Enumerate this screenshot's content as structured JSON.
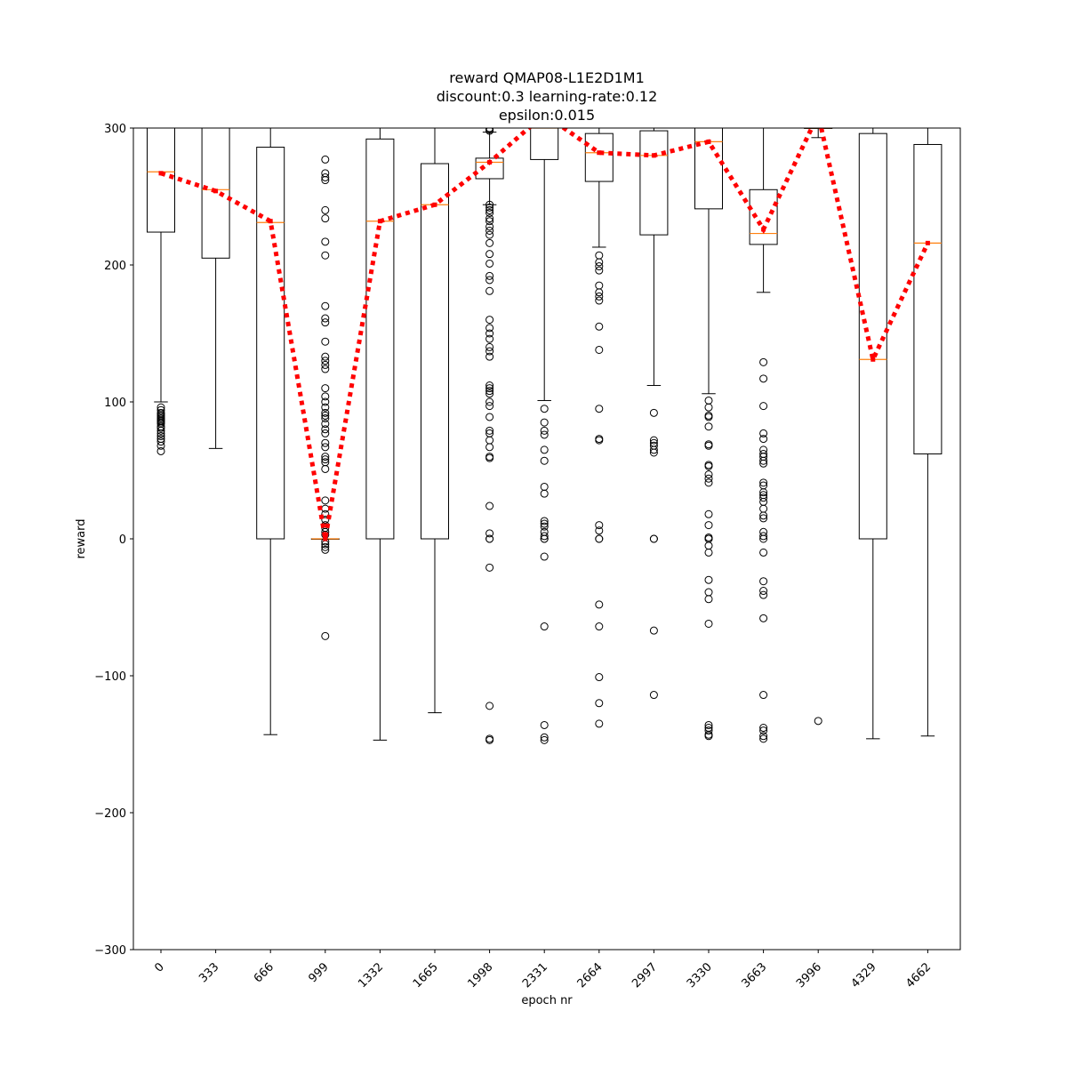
{
  "chart_data": {
    "type": "box",
    "title": [
      "reward QMAP08-L1E2D1M1",
      "discount:0.3 learning-rate:0.12",
      "epsilon:0.015"
    ],
    "xlabel": "epoch nr",
    "ylabel": "reward",
    "ylim": [
      -300,
      300
    ],
    "yticks": [
      -300,
      -200,
      -100,
      0,
      100,
      200,
      300
    ],
    "grid": false,
    "categories": [
      "0",
      "333",
      "666",
      "999",
      "1332",
      "1665",
      "1998",
      "2331",
      "2664",
      "2997",
      "3330",
      "3663",
      "3996",
      "4329",
      "4662"
    ],
    "box_stats": [
      {
        "label": "0",
        "whislo": 100,
        "q1": 224,
        "median": 268,
        "q3": 300,
        "whishi": 300,
        "fliers": [
          64,
          68,
          71,
          73,
          75,
          77,
          79,
          81,
          82,
          84,
          85,
          86,
          87,
          88,
          89,
          90,
          91,
          92,
          94,
          96
        ]
      },
      {
        "label": "333",
        "whislo": 66,
        "q1": 205,
        "median": 255,
        "q3": 300,
        "whishi": 300,
        "fliers": []
      },
      {
        "label": "666",
        "whislo": -143,
        "q1": 0,
        "median": 231,
        "q3": 286,
        "whishi": 300,
        "fliers": []
      },
      {
        "label": "999",
        "whislo": 0,
        "q1": 0,
        "median": 0,
        "q3": 0,
        "whishi": 0,
        "fliers": [
          277,
          267,
          264,
          262,
          240,
          234,
          217,
          207,
          170,
          161,
          158,
          144,
          133,
          130,
          127,
          124,
          110,
          104,
          100,
          96,
          92,
          90,
          88,
          84,
          80,
          77,
          70,
          67,
          60,
          58,
          56,
          51,
          28,
          22,
          18,
          14,
          10,
          8,
          5,
          3,
          -2,
          -4,
          -6,
          -8,
          -71
        ]
      },
      {
        "label": "1332",
        "whislo": -147,
        "q1": 0,
        "median": 232,
        "q3": 292,
        "whishi": 300,
        "fliers": []
      },
      {
        "label": "1665",
        "whislo": -127,
        "q1": 0,
        "median": 244,
        "q3": 274,
        "whishi": 300,
        "fliers": []
      },
      {
        "label": "1998",
        "whislo": 244,
        "q1": 263,
        "median": 275,
        "q3": 278,
        "whishi": 297,
        "fliers": [
          300,
          299,
          298,
          244,
          242,
          240,
          238,
          234,
          232,
          228,
          225,
          222,
          216,
          208,
          201,
          192,
          189,
          181,
          160,
          154,
          150,
          146,
          140,
          137,
          133,
          112,
          110,
          108,
          106,
          100,
          97,
          89,
          79,
          77,
          72,
          67,
          60,
          59,
          24,
          4,
          0,
          0,
          -21,
          -122,
          -146,
          -147
        ]
      },
      {
        "label": "2331",
        "whislo": 101,
        "q1": 277,
        "median": 300,
        "q3": 300,
        "whishi": 300,
        "fliers": [
          95,
          85,
          79,
          76,
          65,
          57,
          38,
          33,
          13,
          11,
          9,
          5,
          2,
          0,
          0,
          -13,
          -64,
          -136,
          -145,
          -147
        ]
      },
      {
        "label": "2664",
        "whislo": 213,
        "q1": 261,
        "median": 282,
        "q3": 296,
        "whishi": 300,
        "fliers": [
          207,
          202,
          199,
          196,
          185,
          180,
          177,
          174,
          155,
          138,
          95,
          73,
          72,
          10,
          6,
          0,
          0,
          -48,
          -64,
          -101,
          -120,
          -135
        ]
      },
      {
        "label": "2997",
        "whislo": 112,
        "q1": 222,
        "median": 280,
        "q3": 298,
        "whishi": 300,
        "fliers": [
          92,
          72,
          70,
          68,
          65,
          63,
          0,
          0,
          -67,
          -114
        ]
      },
      {
        "label": "3330",
        "whislo": 106,
        "q1": 241,
        "median": 290,
        "q3": 300,
        "whishi": 300,
        "fliers": [
          101,
          96,
          90,
          89,
          82,
          69,
          68,
          54,
          53,
          47,
          44,
          41,
          18,
          10,
          1,
          0,
          0,
          -5,
          -10,
          -30,
          -39,
          -44,
          -62,
          -136,
          -138,
          -140,
          -143,
          -144
        ]
      },
      {
        "label": "3663",
        "whislo": 180,
        "q1": 215,
        "median": 223,
        "q3": 255,
        "whishi": 300,
        "fliers": [
          129,
          117,
          97,
          77,
          73,
          65,
          62,
          60,
          57,
          55,
          41,
          39,
          34,
          32,
          30,
          27,
          22,
          17,
          15,
          5,
          2,
          0,
          -10,
          -31,
          -38,
          -41,
          -58,
          -114,
          -138,
          -140,
          -144,
          -146
        ]
      },
      {
        "label": "3996",
        "whislo": 293,
        "q1": 300,
        "median": 300,
        "q3": 300,
        "whishi": 300,
        "fliers": [
          -133
        ]
      },
      {
        "label": "4329",
        "whislo": -146,
        "q1": 0,
        "median": 131,
        "q3": 296,
        "whishi": 300,
        "fliers": []
      },
      {
        "label": "4662",
        "whislo": -144,
        "q1": 62,
        "median": 216,
        "q3": 288,
        "whishi": 300,
        "fliers": []
      }
    ],
    "mean_line": {
      "style": "dotted",
      "color": "#ff0000",
      "values": [
        267,
        254,
        232,
        0,
        232,
        244,
        275,
        310,
        282,
        280,
        290,
        226,
        310,
        131,
        216
      ]
    },
    "colors": {
      "box": "#000000",
      "median": "#ff7f0e",
      "mean_line": "#ff0000",
      "flier": "#000000"
    }
  }
}
